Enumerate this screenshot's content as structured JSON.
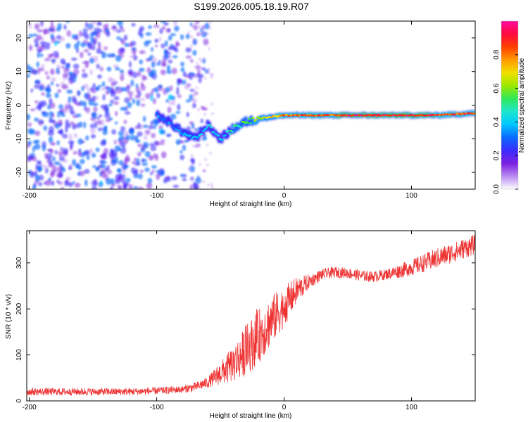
{
  "title": "S199.2026.005.18.19.R07",
  "chart_data": [
    {
      "type": "heatmap",
      "name": "spectrogram",
      "xlabel": "Height of straight line (km)",
      "ylabel": "Frequency (Hz)",
      "xlim": [
        -202,
        150
      ],
      "ylim": [
        -25,
        25
      ],
      "xticks": [
        -200,
        -100,
        0,
        100
      ],
      "yticks": [
        -20,
        -10,
        0,
        10,
        20
      ],
      "grid": false,
      "colorbar": {
        "label": "Normalized spectral amplitude",
        "range": [
          0,
          1
        ],
        "ticks": [
          "0.0",
          "0.2",
          "0.4",
          "0.6",
          "0.8"
        ],
        "tick_values": [
          0.0,
          0.2,
          0.4,
          0.6,
          0.8
        ],
        "colormap": "rainbow",
        "colors": [
          "#ffffff",
          "#b98cf0",
          "#7b20e0",
          "#3a2cff",
          "#0a6bff",
          "#00c6ff",
          "#1ee6d0",
          "#2fe85a",
          "#9be800",
          "#f0e000",
          "#ff9a00",
          "#ff4000",
          "#ff0a3c",
          "#ff0aa0"
        ]
      },
      "carrier_track": {
        "x": [
          -100,
          -90,
          -80,
          -70,
          -60,
          -50,
          -40,
          -30,
          -20,
          -10,
          0,
          10,
          20,
          30,
          40,
          50,
          60,
          70,
          80,
          90,
          100,
          110,
          120,
          130,
          140,
          150
        ],
        "freq": [
          -3,
          -5,
          -8,
          -10,
          -6,
          -10,
          -7,
          -5,
          -4,
          -3.5,
          -3,
          -3,
          -3,
          -3,
          -3,
          -3,
          -3,
          -3,
          -3,
          -3,
          -3,
          -3,
          -3,
          -2.8,
          -2.6,
          -2.4
        ],
        "amplitude": [
          0.35,
          0.35,
          0.4,
          0.4,
          0.45,
          0.45,
          0.5,
          0.6,
          0.65,
          0.75,
          0.8,
          0.85,
          0.9,
          0.9,
          0.9,
          0.95,
          0.95,
          0.95,
          0.95,
          0.95,
          0.95,
          0.95,
          0.9,
          0.9,
          0.9,
          0.9
        ]
      },
      "noise_region": {
        "x_range": [
          -202,
          -60
        ],
        "amplitude_range": [
          0.1,
          0.35
        ]
      }
    },
    {
      "type": "line",
      "name": "snr",
      "xlabel": "Height of straight line (km)",
      "ylabel": "SNR (10 * v/v)",
      "xlim": [
        -202,
        150
      ],
      "ylim": [
        0,
        370
      ],
      "xticks": [
        -200,
        -100,
        0,
        100
      ],
      "yticks": [
        0,
        100,
        200,
        300
      ],
      "color": "#ee3333",
      "grid": false,
      "series": [
        {
          "name": "SNR",
          "x": [
            -202,
            -180,
            -160,
            -140,
            -120,
            -100,
            -80,
            -70,
            -60,
            -50,
            -40,
            -30,
            -20,
            -10,
            0,
            10,
            20,
            30,
            40,
            50,
            60,
            70,
            80,
            90,
            100,
            110,
            120,
            130,
            140,
            150
          ],
          "values": [
            20,
            20,
            20,
            20,
            20,
            22,
            25,
            30,
            40,
            60,
            80,
            110,
            140,
            175,
            205,
            240,
            260,
            275,
            280,
            278,
            272,
            270,
            275,
            282,
            290,
            300,
            310,
            320,
            330,
            340
          ],
          "noise_amplitude": [
            8,
            8,
            8,
            8,
            8,
            8,
            8,
            10,
            12,
            25,
            40,
            55,
            60,
            55,
            45,
            30,
            15,
            12,
            12,
            12,
            12,
            12,
            12,
            15,
            18,
            20,
            22,
            22,
            22,
            22
          ]
        }
      ]
    }
  ]
}
